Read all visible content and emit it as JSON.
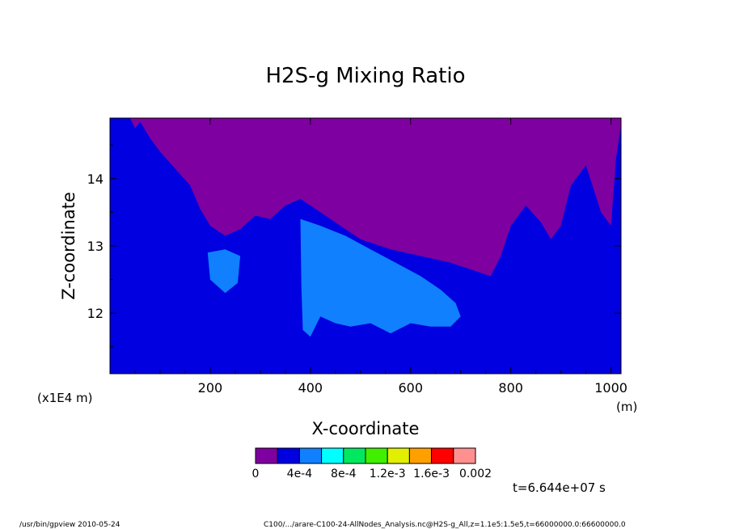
{
  "chart_data": {
    "type": "heatmap",
    "title": "H2S-g Mixing Ratio",
    "xlabel": "X-coordinate",
    "ylabel": "Z-coordinate",
    "x_unit": "(m)",
    "y_unit": "(x1E4 m)",
    "xlim": [
      0,
      1020
    ],
    "ylim": [
      11.1,
      14.9
    ],
    "x_ticks": [
      200,
      400,
      600,
      800,
      1000
    ],
    "x_tick_labels": [
      "200",
      "400",
      "600",
      "800",
      "1000"
    ],
    "y_ticks": [
      12,
      13,
      14
    ],
    "y_tick_labels": [
      "12",
      "13",
      "14"
    ],
    "colorbar": {
      "levels": [
        0,
        0.0002,
        0.0004,
        0.0006,
        0.0008,
        0.001,
        0.0012,
        0.0014,
        0.0016,
        0.0018,
        0.002
      ],
      "colors": [
        "#7f00a0",
        "#0000e0",
        "#1080ff",
        "#00ffff",
        "#00e860",
        "#40f000",
        "#e0f000",
        "#ffa000",
        "#ff0000",
        "#ff9090"
      ],
      "labels": [
        "0",
        "4e-4",
        "8e-4",
        "1.2e-3",
        "1.6e-3",
        "0.002"
      ]
    },
    "regions": [
      {
        "level_index": 0,
        "desc_x": [
          0,
          1020
        ],
        "upper_boundary": [
          [
            40,
            14.9
          ],
          [
            50,
            14.75
          ],
          [
            60,
            14.85
          ],
          [
            80,
            14.6
          ],
          [
            100,
            14.4
          ],
          [
            130,
            14.15
          ],
          [
            160,
            13.9
          ],
          [
            180,
            13.55
          ],
          [
            200,
            13.3
          ],
          [
            230,
            13.15
          ],
          [
            260,
            13.25
          ],
          [
            290,
            13.45
          ],
          [
            320,
            13.4
          ],
          [
            350,
            13.6
          ],
          [
            380,
            13.7
          ],
          [
            420,
            13.5
          ],
          [
            460,
            13.3
          ],
          [
            500,
            13.1
          ],
          [
            560,
            12.95
          ],
          [
            620,
            12.85
          ],
          [
            680,
            12.75
          ],
          [
            740,
            12.6
          ],
          [
            760,
            12.55
          ],
          [
            780,
            12.85
          ],
          [
            800,
            13.3
          ],
          [
            830,
            13.6
          ],
          [
            860,
            13.35
          ],
          [
            880,
            13.1
          ],
          [
            900,
            13.3
          ],
          [
            920,
            13.9
          ],
          [
            950,
            14.2
          ],
          [
            980,
            13.5
          ],
          [
            1000,
            13.3
          ],
          [
            1010,
            14.3
          ],
          [
            1020,
            14.8
          ]
        ]
      },
      {
        "level_index": 2,
        "outline": [
          [
            380,
            13.4
          ],
          [
            420,
            13.3
          ],
          [
            470,
            13.15
          ],
          [
            520,
            12.95
          ],
          [
            570,
            12.75
          ],
          [
            620,
            12.55
          ],
          [
            660,
            12.35
          ],
          [
            690,
            12.15
          ],
          [
            700,
            11.95
          ],
          [
            680,
            11.8
          ],
          [
            640,
            11.8
          ],
          [
            600,
            11.85
          ],
          [
            560,
            11.7
          ],
          [
            520,
            11.85
          ],
          [
            480,
            11.8
          ],
          [
            450,
            11.85
          ],
          [
            420,
            11.95
          ],
          [
            400,
            11.65
          ],
          [
            385,
            11.75
          ],
          [
            382,
            12.4
          ]
        ]
      },
      {
        "level_index": 2,
        "outline": [
          [
            195,
            12.9
          ],
          [
            230,
            12.95
          ],
          [
            260,
            12.85
          ],
          [
            255,
            12.45
          ],
          [
            230,
            12.3
          ],
          [
            200,
            12.5
          ]
        ]
      }
    ]
  },
  "footer": {
    "time_label": "t=6.644e+07 s",
    "program": "/usr/bin/gpview  2010-05-24",
    "source": "C100/.../arare-C100-24-AllNodes_Analysis.nc@H2S-g_All,z=1.1e5:1.5e5,t=66000000.0:66600000.0"
  }
}
